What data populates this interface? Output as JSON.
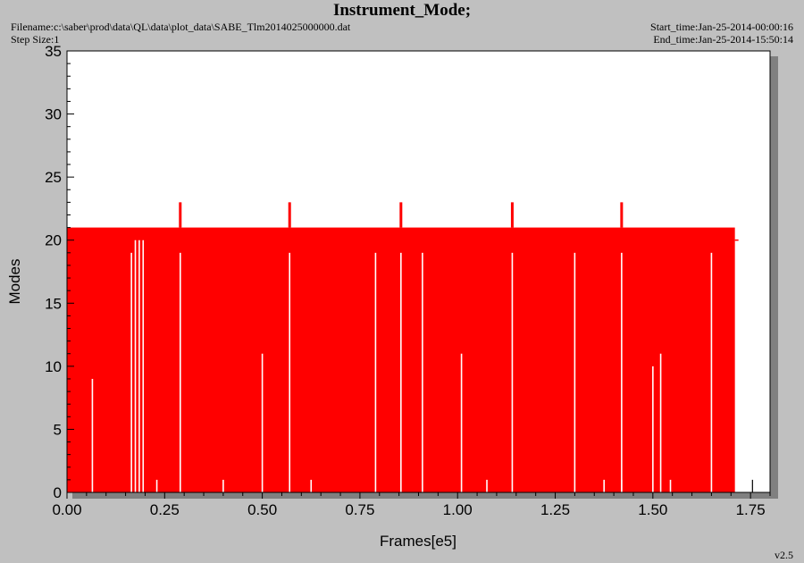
{
  "header": {
    "title": "Instrument_Mode;",
    "filename": "Filename:c:\\saber\\prod\\data\\QL\\data\\plot_data\\SABE_Tlm2014025000000.dat",
    "step_size": "Step Size:1",
    "start_time": "Start_time:Jan-25-2014-00:00:16",
    "end_time": "End_time:Jan-25-2014-15:50:14"
  },
  "footer": {
    "version": "v2.5"
  },
  "colors": {
    "series": "#ff0000",
    "plot_bg": "#ffffff",
    "frame_bg": "#c0c0c0",
    "shadow": "#808080"
  },
  "chart_data": {
    "type": "line",
    "title": "Instrument_Mode;",
    "xlabel": "Frames[e5]",
    "ylabel": "Modes",
    "xlim": [
      0,
      1.8
    ],
    "ylim": [
      0,
      35
    ],
    "xticks": [
      "0.00",
      "0.25",
      "0.50",
      "0.75",
      "1.00",
      "1.25",
      "1.50",
      "1.75"
    ],
    "yticks": [
      "0",
      "5",
      "10",
      "15",
      "20",
      "25",
      "30",
      "35"
    ],
    "grid": false,
    "series": [
      {
        "band": {
          "x_start": 0.0,
          "x_end": 1.71,
          "y_low": 0,
          "y_high": 21
        },
        "spikes_23": [
          0.29,
          0.57,
          0.855,
          1.14,
          1.42
        ],
        "dropouts": [
          {
            "x": 0.065,
            "y": 9
          },
          {
            "x": 0.165,
            "y": 19
          },
          {
            "x": 0.175,
            "y": 20
          },
          {
            "x": 0.185,
            "y": 20
          },
          {
            "x": 0.195,
            "y": 20
          },
          {
            "x": 0.29,
            "y": 19
          },
          {
            "x": 0.5,
            "y": 11
          },
          {
            "x": 0.57,
            "y": 19
          },
          {
            "x": 0.79,
            "y": 19
          },
          {
            "x": 0.855,
            "y": 19
          },
          {
            "x": 0.91,
            "y": 19
          },
          {
            "x": 1.01,
            "y": 11
          },
          {
            "x": 1.14,
            "y": 19
          },
          {
            "x": 1.3,
            "y": 19
          },
          {
            "x": 1.42,
            "y": 19
          },
          {
            "x": 1.5,
            "y": 10
          },
          {
            "x": 1.52,
            "y": 11
          },
          {
            "x": 1.65,
            "y": 19
          }
        ],
        "tail_points": [
          {
            "x": 1.69,
            "y": 1
          },
          {
            "x": 1.755,
            "y": 1
          }
        ],
        "dip_ticks": [
          {
            "x": 0.23,
            "y": 1
          },
          {
            "x": 0.4,
            "y": 1
          },
          {
            "x": 0.625,
            "y": 1
          },
          {
            "x": 1.075,
            "y": 1
          },
          {
            "x": 1.375,
            "y": 1
          },
          {
            "x": 1.42,
            "y": 1
          },
          {
            "x": 1.545,
            "y": 1
          }
        ]
      }
    ]
  }
}
